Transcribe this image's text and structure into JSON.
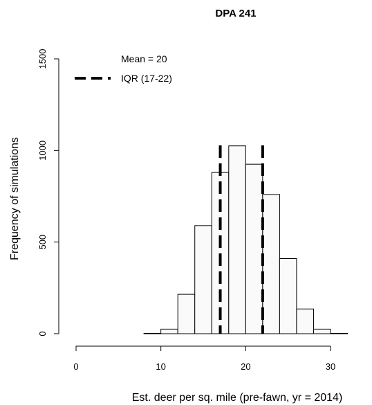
{
  "chart_data": {
    "type": "histogram",
    "title": "DPA 241",
    "xlabel": "Est. deer per sq. mile (pre-fawn, yr = 2014)",
    "ylabel": "Frequency of simulations",
    "xlim": [
      0,
      32
    ],
    "ylim": [
      0,
      1500
    ],
    "x_ticks": [
      0,
      10,
      20,
      30
    ],
    "y_ticks": [
      0,
      500,
      1000,
      1500
    ],
    "bin_width": 2,
    "bins": [
      {
        "x0": 8,
        "x1": 10,
        "value": 2
      },
      {
        "x0": 10,
        "x1": 12,
        "value": 25
      },
      {
        "x0": 12,
        "x1": 14,
        "value": 215
      },
      {
        "x0": 14,
        "x1": 16,
        "value": 590
      },
      {
        "x0": 16,
        "x1": 18,
        "value": 880
      },
      {
        "x0": 18,
        "x1": 20,
        "value": 1025
      },
      {
        "x0": 20,
        "x1": 22,
        "value": 925
      },
      {
        "x0": 22,
        "x1": 24,
        "value": 760
      },
      {
        "x0": 24,
        "x1": 26,
        "value": 410
      },
      {
        "x0": 26,
        "x1": 28,
        "value": 135
      },
      {
        "x0": 28,
        "x1": 30,
        "value": 25
      },
      {
        "x0": 30,
        "x1": 32,
        "value": 2
      }
    ],
    "bar_fill": "#fafafa",
    "bar_stroke": "#000000",
    "lines": [
      {
        "name": "IQR lower",
        "x": 17,
        "style": "dashed"
      },
      {
        "name": "IQR upper",
        "x": 22,
        "style": "dashed"
      }
    ],
    "legend": {
      "placement": "top-left",
      "entries": [
        {
          "label": "Mean = 20",
          "style": "none"
        },
        {
          "label": "IQR (17-22)",
          "style": "dashed"
        }
      ]
    },
    "grid": false
  }
}
